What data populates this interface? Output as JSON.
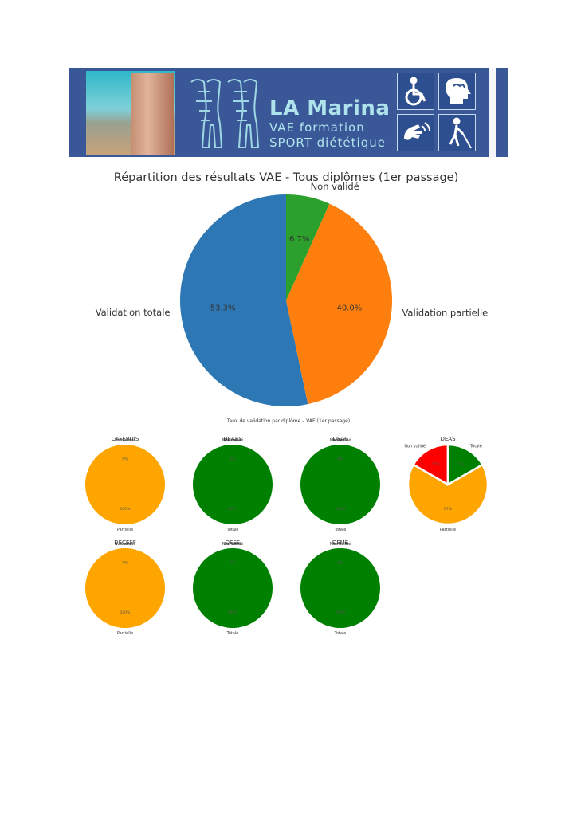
{
  "banner": {
    "brand_title": "LA Marina",
    "brand_line1": "VAE formation",
    "brand_line2": "SPORT diététique",
    "accessibility_icons": [
      "wheelchair-icon",
      "head-brain-icon",
      "sign-language-icon",
      "blind-cane-icon"
    ]
  },
  "chart_data": [
    {
      "type": "pie",
      "title": "Répartition des résultats VAE - Tous diplômes (1er passage)",
      "labels": [
        "Validation totale",
        "Validation partielle",
        "Non validé"
      ],
      "values": [
        53.3,
        40.0,
        6.7
      ],
      "value_labels": [
        "53.3%",
        "40.0%",
        "6.7%"
      ],
      "colors": [
        "#2d77b4",
        "#ff7f0e",
        "#2ca02c"
      ]
    },
    {
      "type": "pie",
      "title": "Taux de validation par diplôme – VAE (1er passage)",
      "charts": [
        {
          "title": "CAFERUIS",
          "labels": [
            "Partielle",
            "Totale",
            "Non validé"
          ],
          "values": [
            100,
            0,
            0
          ],
          "value_labels": [
            "100%",
            "0%",
            ""
          ]
        },
        {
          "title": "DEAES",
          "labels": [
            "Totale",
            "Partielle",
            "Non validé"
          ],
          "values": [
            100,
            0,
            0
          ],
          "value_labels": [
            "100%",
            "0%",
            ""
          ]
        },
        {
          "title": "DEAP",
          "labels": [
            "Totale",
            "Partielle",
            "Non validé"
          ],
          "values": [
            100,
            0,
            0
          ],
          "value_labels": [
            "100%",
            "0%",
            ""
          ]
        },
        {
          "title": "DEAS",
          "labels": [
            "Non validé",
            "Partielle",
            "Totale"
          ],
          "values": [
            16.7,
            66.7,
            16.7
          ],
          "value_labels": [
            "17%",
            "67%",
            "17%"
          ]
        },
        {
          "title": "DECESF",
          "labels": [
            "Partielle",
            "Totale",
            "Non validé"
          ],
          "values": [
            100,
            0,
            0
          ],
          "value_labels": [
            "100%",
            "0%",
            ""
          ]
        },
        {
          "title": "DEES",
          "labels": [
            "Totale",
            "Partielle",
            "Non validé"
          ],
          "values": [
            100,
            0,
            0
          ],
          "value_labels": [
            "100%",
            "0%",
            ""
          ]
        },
        {
          "title": "DEME",
          "labels": [
            "Totale",
            "Partielle",
            "Non validé"
          ],
          "values": [
            100,
            0,
            0
          ],
          "value_labels": [
            "100%",
            "0%",
            ""
          ]
        }
      ],
      "colors": {
        "Totale": "#008000",
        "Partielle": "#ffa500",
        "Non validé": "#ff0000"
      }
    }
  ]
}
